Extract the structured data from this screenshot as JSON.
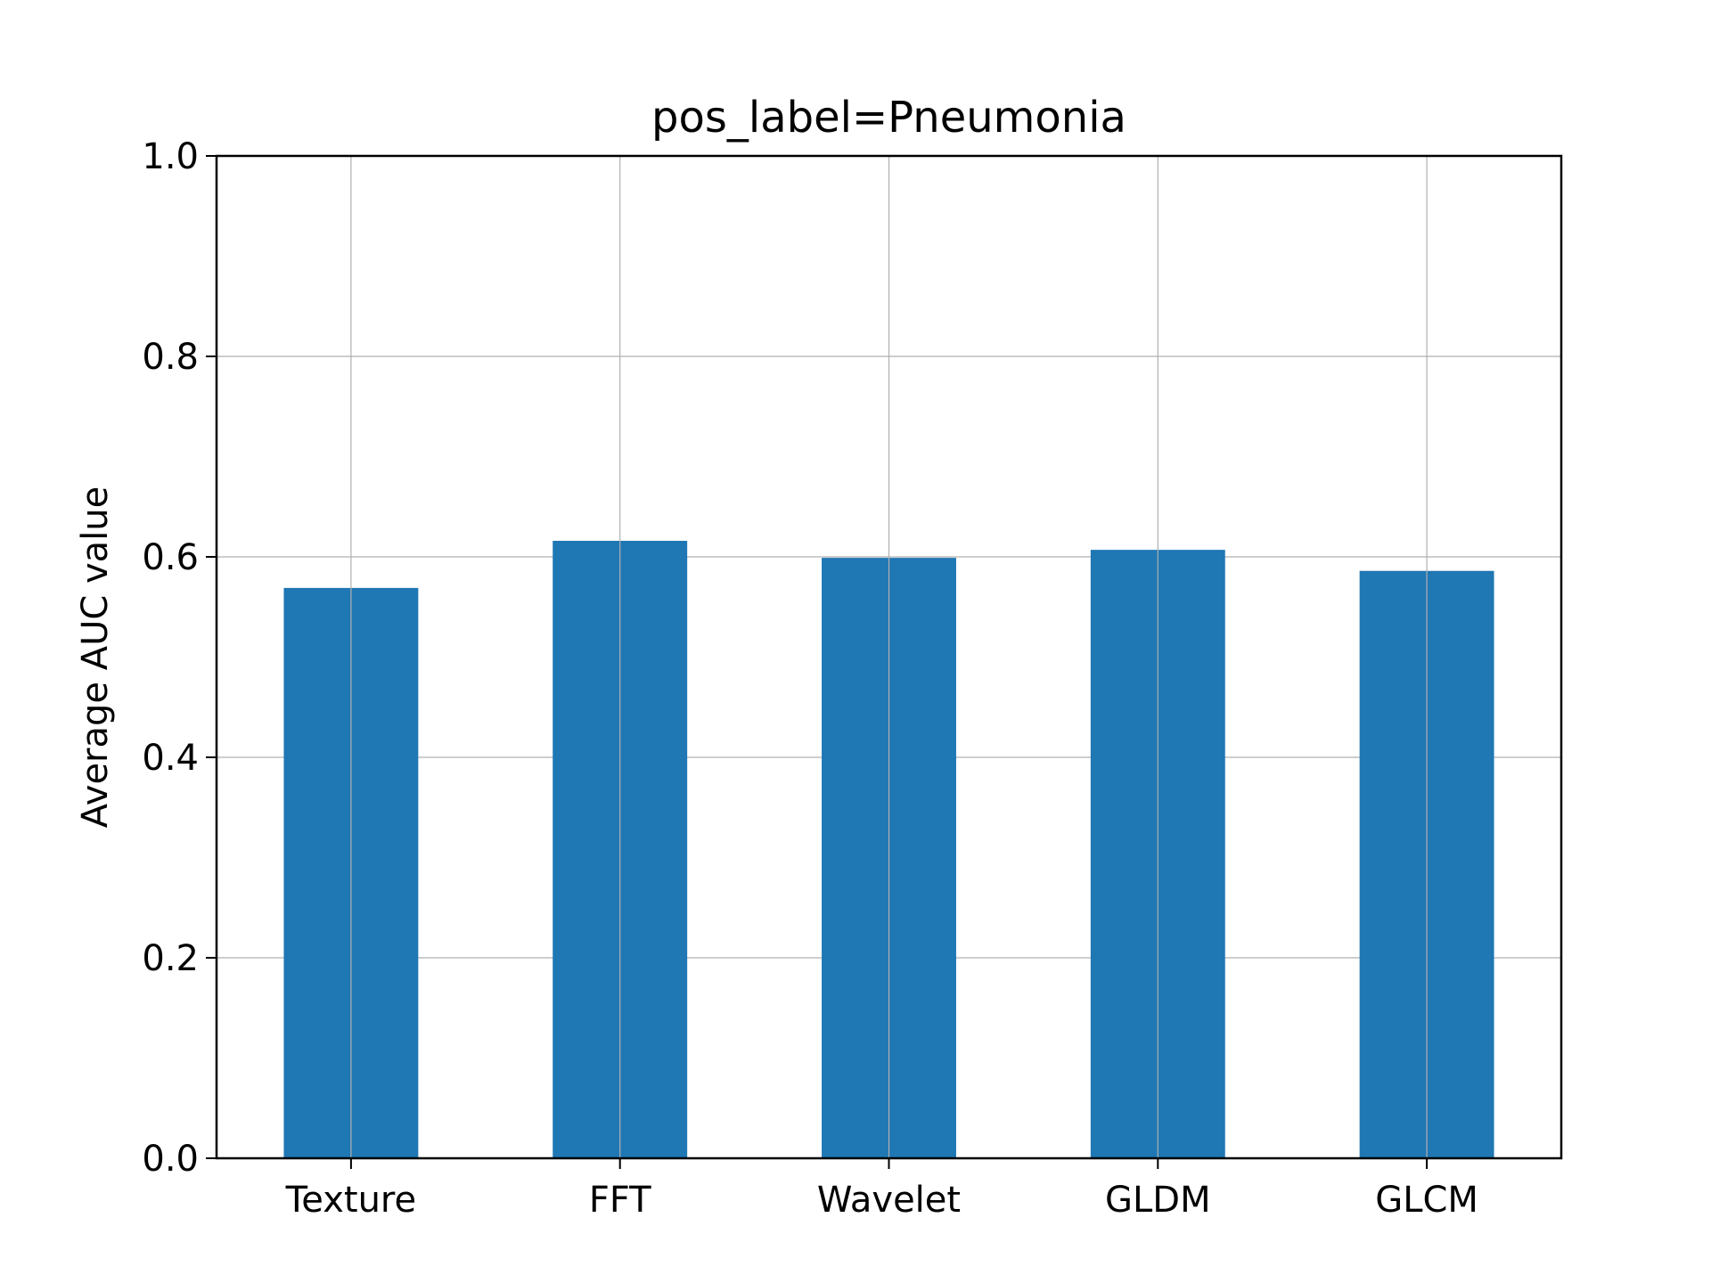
{
  "chart_data": {
    "type": "bar",
    "title": "pos_label=Pneumonia",
    "xlabel": "",
    "ylabel": "Average AUC value",
    "categories": [
      "Texture",
      "FFT",
      "Wavelet",
      "GLDM",
      "GLCM"
    ],
    "values": [
      0.569,
      0.616,
      0.599,
      0.607,
      0.586
    ],
    "ylim": [
      0,
      1.0
    ],
    "yticks": [
      "0.0",
      "0.2",
      "0.4",
      "0.6",
      "0.8",
      "1.0"
    ],
    "grid": true,
    "bar_color": "#1f77b4",
    "grid_color": "#b0b0b0"
  }
}
